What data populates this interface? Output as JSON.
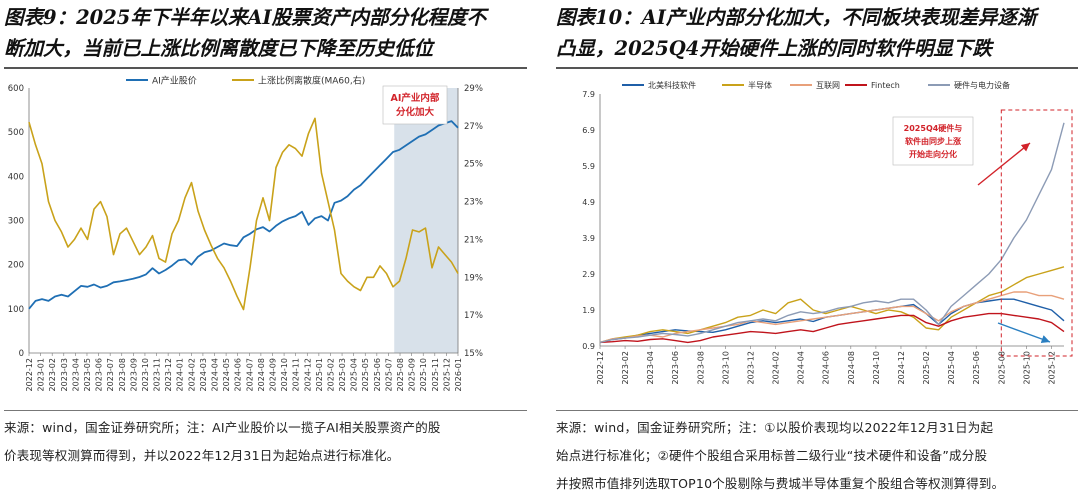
{
  "left_panel": {
    "title_line1": "图表9：2025年下半年以来AI股票资产内部分化程度不",
    "title_line2": "断加大，当前已上涨比例离散度已下降至历史低位",
    "source_line1": "来源：wind，国金证券研究所；注：AI产业股价以一揽子AI相关股票资产的股",
    "source_line2": "价表现等权测算而得到，并以2022年12月31日为起始点进行标准化。"
  },
  "right_panel": {
    "title_line1": "图表10：AI产业内部分化加大，不同板块表现差异逐渐",
    "title_line2": "凸显，2025Q4开始硬件上涨的同时软件明显下跌",
    "source_line1": "来源：wind，国金证券研究所；注：①以股价表现均以2022年12月31日为起",
    "source_line2": "始点进行标准化；②硬件个股组合采用标普二级行业“技术硬件和设备”成分股",
    "source_line3": "并按照市值排列选取TOP10个股剔除与费城半导体重复个股组合等权测算得到。"
  },
  "colors": {
    "blue": "#1f6fb4",
    "gold": "#c9a21a",
    "navy": "#1f5fa8",
    "orange": "#e8a07a",
    "red": "#c0141c",
    "gray": "#8c9bb5",
    "shade": "#d8e1ea",
    "annot_red": "#d2232a"
  },
  "chart_data": [
    {
      "type": "line",
      "title": "",
      "legend": [
        "AI产业股价",
        "上涨比例离散度(MA60,右)"
      ],
      "legend_position": "top",
      "annotation": "AI产业内部分化加大",
      "y_left": {
        "min": 0,
        "max": 600,
        "ticks": [
          0,
          100,
          200,
          300,
          400,
          500,
          600
        ]
      },
      "y_right": {
        "min": 15,
        "max": 29,
        "ticks": [
          "15%",
          "17%",
          "19%",
          "21%",
          "23%",
          "25%",
          "27%",
          "29%"
        ]
      },
      "x_labels": [
        "2022-12",
        "2023-01",
        "2023-02",
        "2023-03",
        "2023-04",
        "2023-05",
        "2023-06",
        "2023-07",
        "2023-08",
        "2023-09",
        "2023-10",
        "2023-11",
        "2023-12",
        "2024-01",
        "2024-02",
        "2024-03",
        "2024-04",
        "2024-05",
        "2024-06",
        "2024-07",
        "2024-08",
        "2024-09",
        "2024-10",
        "2024-11",
        "2024-12",
        "2025-01",
        "2025-02",
        "2025-03",
        "2025-04",
        "2025-05",
        "2025-06",
        "2025-07",
        "2025-08",
        "2025-09",
        "2025-10",
        "2025-11",
        "2025-12",
        "2026-01"
      ],
      "shaded_from_month": 31.5,
      "series": [
        {
          "name": "AI产业股价",
          "axis": "left",
          "color_key": "blue",
          "values": [
            100,
            118,
            122,
            118,
            128,
            132,
            128,
            140,
            152,
            150,
            155,
            148,
            152,
            160,
            162,
            165,
            168,
            172,
            178,
            192,
            180,
            188,
            198,
            210,
            212,
            200,
            218,
            228,
            232,
            240,
            248,
            244,
            242,
            262,
            270,
            280,
            285,
            275,
            288,
            298,
            305,
            310,
            320,
            290,
            305,
            310,
            300,
            340,
            345,
            355,
            370,
            380,
            395,
            410,
            425,
            440,
            455,
            460,
            470,
            480,
            490,
            495,
            505,
            515,
            520,
            525,
            510
          ]
        },
        {
          "name": "上涨比例离散度(MA60,右)",
          "axis": "right",
          "color_key": "gold",
          "values": [
            27.2,
            26.0,
            25.0,
            23.0,
            22.0,
            21.4,
            20.6,
            21.0,
            21.6,
            21.0,
            22.6,
            23.0,
            22.2,
            20.2,
            21.3,
            21.6,
            20.9,
            20.2,
            20.6,
            21.2,
            20.0,
            19.8,
            21.3,
            22.0,
            23.2,
            24.0,
            22.5,
            21.5,
            20.7,
            20.0,
            19.5,
            18.8,
            18.0,
            17.3,
            19.5,
            22.0,
            23.2,
            22.0,
            24.8,
            25.6,
            26.0,
            25.8,
            25.4,
            26.6,
            27.4,
            24.5,
            23.0,
            21.5,
            19.2,
            18.8,
            18.5,
            18.3,
            19.0,
            19.0,
            19.6,
            19.2,
            18.5,
            18.8,
            20.0,
            21.5,
            21.4,
            21.6,
            19.5,
            20.6,
            20.2,
            19.8,
            19.2
          ]
        }
      ]
    },
    {
      "type": "line",
      "title": "",
      "legend": [
        "北美科技软件",
        "半导体",
        "互联网",
        "Fintech",
        "硬件与电力设备"
      ],
      "legend_position": "top",
      "annotation": "2025Q4硬件与软件由同步上涨开始走向分化",
      "y_axis": {
        "min": 0.9,
        "max": 7.9,
        "ticks": [
          0.9,
          1.9,
          2.9,
          3.9,
          4.9,
          5.9,
          6.9,
          7.9
        ]
      },
      "x_labels": [
        "2022-12",
        "2023-02",
        "2023-04",
        "2023-06",
        "2023-08",
        "2023-10",
        "2023-12",
        "2024-02",
        "2024-04",
        "2024-06",
        "2024-08",
        "2024-10",
        "2024-12",
        "2025-02",
        "2025-04",
        "2025-06",
        "2025-08",
        "2025-10",
        "2025-12"
      ],
      "x_range_months": [
        0,
        37
      ],
      "highlight_from_month": 32,
      "series": [
        {
          "name": "北美科技软件",
          "color_key": "navy",
          "x": [
            0,
            1,
            2,
            3,
            4,
            5,
            6,
            7,
            8,
            9,
            10,
            11,
            12,
            13,
            14,
            15,
            16,
            17,
            18,
            19,
            20,
            21,
            22,
            23,
            24,
            25,
            26,
            27,
            28,
            29,
            30,
            31,
            32,
            33,
            34,
            35,
            36,
            37
          ],
          "values": [
            1.0,
            1.08,
            1.12,
            1.2,
            1.25,
            1.3,
            1.35,
            1.32,
            1.3,
            1.28,
            1.35,
            1.45,
            1.55,
            1.6,
            1.55,
            1.6,
            1.65,
            1.58,
            1.7,
            1.75,
            1.8,
            1.85,
            1.9,
            1.95,
            2.0,
            2.05,
            1.8,
            1.5,
            1.8,
            2.0,
            2.1,
            2.15,
            2.2,
            2.2,
            2.1,
            2.0,
            1.9,
            1.6
          ]
        },
        {
          "name": "半导体",
          "color_key": "gold",
          "x": [
            0,
            1,
            2,
            3,
            4,
            5,
            6,
            7,
            8,
            9,
            10,
            11,
            12,
            13,
            14,
            15,
            16,
            17,
            18,
            19,
            20,
            21,
            22,
            23,
            24,
            25,
            26,
            27,
            28,
            29,
            30,
            31,
            32,
            33,
            34,
            35,
            36,
            37
          ],
          "values": [
            1.0,
            1.1,
            1.15,
            1.2,
            1.3,
            1.35,
            1.3,
            1.25,
            1.35,
            1.45,
            1.55,
            1.7,
            1.75,
            1.9,
            1.8,
            2.1,
            2.2,
            1.9,
            1.8,
            1.9,
            2.0,
            1.9,
            1.8,
            1.9,
            1.85,
            1.7,
            1.4,
            1.35,
            1.7,
            1.9,
            2.1,
            2.3,
            2.4,
            2.6,
            2.8,
            2.9,
            3.0,
            3.1
          ]
        },
        {
          "name": "互联网",
          "color_key": "orange",
          "x": [
            0,
            1,
            2,
            3,
            4,
            5,
            6,
            7,
            8,
            9,
            10,
            11,
            12,
            13,
            14,
            15,
            16,
            17,
            18,
            19,
            20,
            21,
            22,
            23,
            24,
            25,
            26,
            27,
            28,
            29,
            30,
            31,
            32,
            33,
            34,
            35,
            36,
            37
          ],
          "values": [
            1.0,
            1.1,
            1.12,
            1.18,
            1.2,
            1.15,
            1.25,
            1.3,
            1.35,
            1.4,
            1.45,
            1.5,
            1.6,
            1.55,
            1.5,
            1.55,
            1.6,
            1.65,
            1.7,
            1.75,
            1.8,
            1.85,
            1.9,
            1.95,
            2.0,
            2.0,
            1.8,
            1.6,
            1.85,
            2.0,
            2.1,
            2.2,
            2.3,
            2.4,
            2.4,
            2.3,
            2.3,
            2.2
          ]
        },
        {
          "name": "Fintech",
          "color_key": "red",
          "x": [
            0,
            1,
            2,
            3,
            4,
            5,
            6,
            7,
            8,
            9,
            10,
            11,
            12,
            13,
            14,
            15,
            16,
            17,
            18,
            19,
            20,
            21,
            22,
            23,
            24,
            25,
            26,
            27,
            28,
            29,
            30,
            31,
            32,
            33,
            34,
            35,
            36,
            37
          ],
          "values": [
            1.0,
            1.02,
            1.05,
            1.03,
            1.08,
            1.1,
            1.05,
            1.0,
            1.05,
            1.15,
            1.2,
            1.25,
            1.3,
            1.28,
            1.25,
            1.3,
            1.35,
            1.3,
            1.4,
            1.5,
            1.55,
            1.6,
            1.65,
            1.7,
            1.75,
            1.75,
            1.55,
            1.45,
            1.6,
            1.7,
            1.75,
            1.8,
            1.8,
            1.75,
            1.7,
            1.65,
            1.55,
            1.3
          ]
        },
        {
          "name": "硬件与电力设备",
          "color_key": "gray",
          "x": [
            0,
            1,
            2,
            3,
            4,
            5,
            6,
            7,
            8,
            9,
            10,
            11,
            12,
            13,
            14,
            15,
            16,
            17,
            18,
            19,
            20,
            21,
            22,
            23,
            24,
            25,
            26,
            27,
            28,
            29,
            30,
            31,
            32,
            33,
            34,
            35,
            36,
            37
          ],
          "values": [
            1.0,
            1.08,
            1.12,
            1.15,
            1.2,
            1.25,
            1.22,
            1.18,
            1.25,
            1.35,
            1.45,
            1.55,
            1.6,
            1.65,
            1.6,
            1.75,
            1.85,
            1.8,
            1.85,
            1.95,
            2.0,
            2.1,
            2.15,
            2.1,
            2.2,
            2.2,
            1.9,
            1.5,
            2.0,
            2.3,
            2.6,
            2.9,
            3.3,
            3.9,
            4.4,
            5.1,
            5.8,
            7.1
          ]
        }
      ]
    }
  ]
}
